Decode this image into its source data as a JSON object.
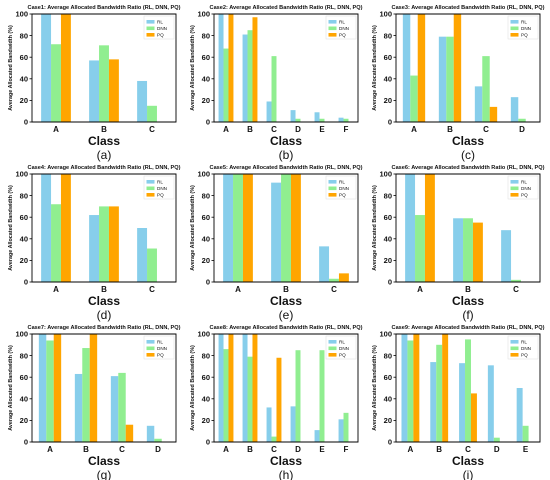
{
  "colors": {
    "RL": "#87CEEB",
    "DNN": "#90EE90",
    "PQ": "#FFA500"
  },
  "chart_data": [
    {
      "type": "bar",
      "title": "Case1: Average Allocated Bandwidth Ratio (RL, DNN, PQ)",
      "xlabel": "Class",
      "ylabel": "Average Allocated Bandwidth (%)",
      "ylim": [
        0,
        100
      ],
      "yticks": [
        0,
        20,
        40,
        60,
        80,
        100
      ],
      "legend": "top-right",
      "caption": "(a)",
      "categories": [
        "A",
        "B",
        "C"
      ],
      "series": [
        {
          "name": "RL",
          "values": [
            100,
            57,
            38
          ]
        },
        {
          "name": "DNN",
          "values": [
            72,
            71,
            15
          ]
        },
        {
          "name": "PQ",
          "values": [
            100,
            58,
            0
          ]
        }
      ]
    },
    {
      "type": "bar",
      "title": "Case2: Average Allocated Bandwidth Ratio (RL, DNN, PQ)",
      "xlabel": "Class",
      "ylabel": "Average Allocated Bandwidth (%)",
      "ylim": [
        0,
        100
      ],
      "yticks": [
        0,
        20,
        40,
        60,
        80,
        100
      ],
      "legend": "top-right",
      "caption": "(b)",
      "categories": [
        "A",
        "B",
        "C",
        "D",
        "E",
        "F"
      ],
      "series": [
        {
          "name": "RL",
          "values": [
            100,
            81,
            19,
            11,
            9,
            4
          ]
        },
        {
          "name": "DNN",
          "values": [
            68,
            85,
            61,
            3,
            3,
            3
          ]
        },
        {
          "name": "PQ",
          "values": [
            100,
            97,
            0,
            0,
            0,
            0
          ]
        }
      ]
    },
    {
      "type": "bar",
      "title": "Case3: Average Allocated Bandwidth Ratio (RL, DNN, PQ)",
      "xlabel": "Class",
      "ylabel": "Average Allocated Bandwidth (%)",
      "ylim": [
        0,
        100
      ],
      "yticks": [
        0,
        20,
        40,
        60,
        80,
        100
      ],
      "legend": "top-right",
      "caption": "(c)",
      "categories": [
        "A",
        "B",
        "C",
        "D"
      ],
      "series": [
        {
          "name": "RL",
          "values": [
            100,
            79,
            33,
            23
          ]
        },
        {
          "name": "DNN",
          "values": [
            43,
            79,
            61,
            3
          ]
        },
        {
          "name": "PQ",
          "values": [
            100,
            100,
            14,
            0
          ]
        }
      ]
    },
    {
      "type": "bar",
      "title": "Case4: Average Allocated Bandwidth Ratio (RL, DNN, PQ)",
      "xlabel": "Class",
      "ylabel": "Average Allocated Bandwidth (%)",
      "ylim": [
        0,
        100
      ],
      "yticks": [
        0,
        20,
        40,
        60,
        80,
        100
      ],
      "legend": "top-right",
      "caption": "(d)",
      "categories": [
        "A",
        "B",
        "C"
      ],
      "series": [
        {
          "name": "RL",
          "values": [
            100,
            62,
            50
          ]
        },
        {
          "name": "DNN",
          "values": [
            72,
            70,
            31
          ]
        },
        {
          "name": "PQ",
          "values": [
            100,
            70,
            0
          ]
        }
      ]
    },
    {
      "type": "bar",
      "title": "Case5: Average Allocated Bandwidth Ratio (RL, DNN, PQ)",
      "xlabel": "Class",
      "ylabel": "Average Allocated Bandwidth (%)",
      "ylim": [
        0,
        100
      ],
      "yticks": [
        0,
        20,
        40,
        60,
        80,
        100
      ],
      "legend": "top-right",
      "caption": "(e)",
      "categories": [
        "A",
        "B",
        "C"
      ],
      "series": [
        {
          "name": "RL",
          "values": [
            100,
            92,
            33
          ]
        },
        {
          "name": "DNN",
          "values": [
            100,
            100,
            3
          ]
        },
        {
          "name": "PQ",
          "values": [
            100,
            100,
            8
          ]
        }
      ]
    },
    {
      "type": "bar",
      "title": "Case6: Average Allocated Bandwidth Ratio (RL, DNN, PQ)",
      "xlabel": "Class",
      "ylabel": "Average Allocated Bandwidth (%)",
      "ylim": [
        0,
        100
      ],
      "yticks": [
        0,
        20,
        40,
        60,
        80,
        100
      ],
      "legend": "top-right",
      "caption": "(f)",
      "categories": [
        "A",
        "B",
        "C"
      ],
      "series": [
        {
          "name": "RL",
          "values": [
            100,
            59,
            48
          ]
        },
        {
          "name": "DNN",
          "values": [
            62,
            59,
            2
          ]
        },
        {
          "name": "PQ",
          "values": [
            100,
            55,
            0
          ]
        }
      ]
    },
    {
      "type": "bar",
      "title": "Case7: Average Allocated Bandwidth Ratio (RL, DNN, PQ)",
      "xlabel": "Class",
      "ylabel": "Average Allocated Bandwidth (%)",
      "ylim": [
        0,
        100
      ],
      "yticks": [
        0,
        20,
        40,
        60,
        80,
        100
      ],
      "legend": "top-right",
      "caption": "(g)",
      "categories": [
        "A",
        "B",
        "C",
        "D"
      ],
      "series": [
        {
          "name": "RL",
          "values": [
            100,
            63,
            61,
            15
          ]
        },
        {
          "name": "DNN",
          "values": [
            94,
            87,
            64,
            3
          ]
        },
        {
          "name": "PQ",
          "values": [
            100,
            100,
            16,
            0
          ]
        }
      ]
    },
    {
      "type": "bar",
      "title": "Case8: Average Allocated Bandwidth Ratio (RL, DNN, PQ)",
      "xlabel": "Class",
      "ylabel": "Average Allocated Bandwidth (%)",
      "ylim": [
        0,
        100
      ],
      "yticks": [
        0,
        20,
        40,
        60,
        80,
        100
      ],
      "legend": "top-right",
      "caption": "(h)",
      "categories": [
        "A",
        "B",
        "C",
        "D",
        "E",
        "F"
      ],
      "series": [
        {
          "name": "RL",
          "values": [
            100,
            100,
            32,
            33,
            11,
            21
          ]
        },
        {
          "name": "DNN",
          "values": [
            86,
            79,
            5,
            85,
            85,
            27
          ]
        },
        {
          "name": "PQ",
          "values": [
            100,
            100,
            78,
            0,
            0,
            0
          ]
        }
      ]
    },
    {
      "type": "bar",
      "title": "Case9: Average Allocated Bandwidth Ratio (RL, DNN, PQ)",
      "xlabel": "Class",
      "ylabel": "Average Allocated Bandwidth (%)",
      "ylim": [
        0,
        100
      ],
      "yticks": [
        0,
        20,
        40,
        60,
        80,
        100
      ],
      "legend": "top-right",
      "caption": "(i)",
      "categories": [
        "A",
        "B",
        "C",
        "D",
        "E"
      ],
      "series": [
        {
          "name": "RL",
          "values": [
            100,
            74,
            73,
            71,
            50
          ]
        },
        {
          "name": "DNN",
          "values": [
            94,
            90,
            95,
            4,
            15
          ]
        },
        {
          "name": "PQ",
          "values": [
            100,
            100,
            45,
            0,
            0
          ]
        }
      ]
    }
  ]
}
